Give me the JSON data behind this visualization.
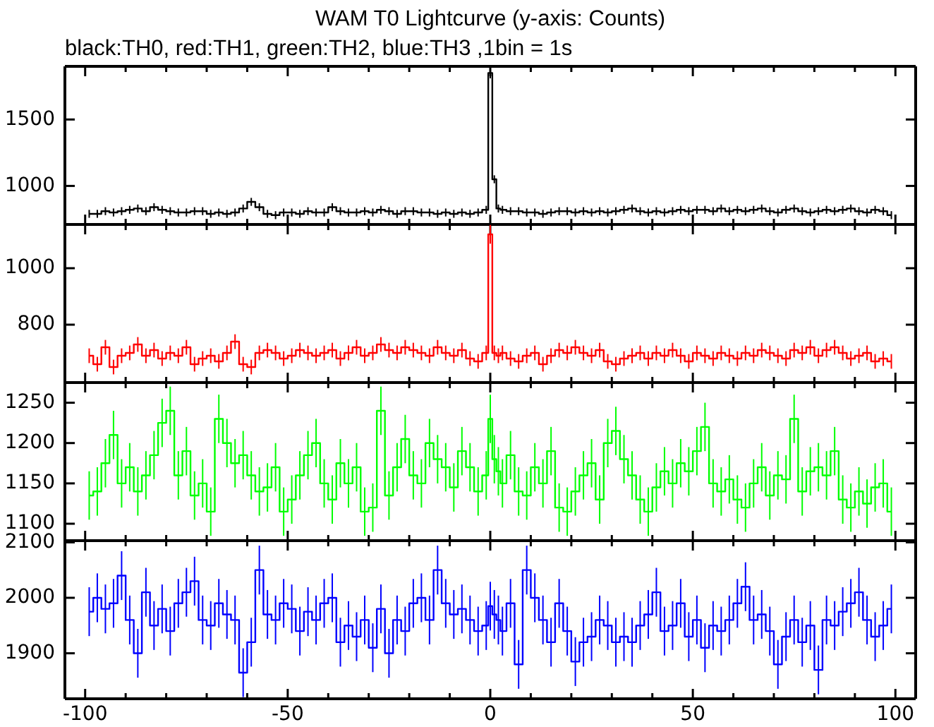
{
  "chart_data": [
    {
      "type": "step",
      "title": "WAM T0 Lightcurve (y-axis: Counts)",
      "subtitle": "black:TH0, red:TH1, green:TH2, blue:TH3 ,1bin = 1s",
      "color": "#000000",
      "x": [
        -99,
        -97,
        -95,
        -93,
        -91,
        -89,
        -87,
        -85,
        -83,
        -81,
        -79,
        -77,
        -75,
        -73,
        -71,
        -69,
        -67,
        -65,
        -63,
        -61,
        -59,
        -57,
        -55,
        -53,
        -51,
        -49,
        -47,
        -45,
        -43,
        -41,
        -39,
        -37,
        -35,
        -33,
        -31,
        -29,
        -27,
        -25,
        -23,
        -21,
        -19,
        -17,
        -15,
        -13,
        -11,
        -9,
        -7,
        -5,
        -3,
        -1,
        0,
        1,
        2,
        3,
        5,
        7,
        9,
        11,
        13,
        15,
        17,
        19,
        21,
        23,
        25,
        27,
        29,
        31,
        33,
        35,
        37,
        39,
        41,
        43,
        45,
        47,
        49,
        51,
        53,
        55,
        57,
        59,
        61,
        63,
        65,
        67,
        69,
        71,
        73,
        75,
        77,
        79,
        81,
        83,
        85,
        87,
        89,
        91,
        93,
        95,
        97,
        99
      ],
      "values": [
        790,
        790,
        810,
        800,
        810,
        820,
        830,
        810,
        840,
        820,
        810,
        800,
        800,
        810,
        810,
        790,
        800,
        790,
        800,
        830,
        880,
        840,
        790,
        780,
        800,
        800,
        790,
        810,
        800,
        800,
        840,
        810,
        800,
        800,
        810,
        800,
        820,
        810,
        790,
        810,
        810,
        800,
        800,
        790,
        800,
        790,
        800,
        790,
        800,
        820,
        1850,
        1050,
        830,
        820,
        810,
        810,
        800,
        800,
        790,
        800,
        810,
        810,
        800,
        810,
        800,
        810,
        800,
        810,
        820,
        830,
        810,
        800,
        810,
        800,
        810,
        820,
        810,
        820,
        820,
        810,
        830,
        810,
        820,
        810,
        820,
        830,
        810,
        800,
        820,
        830,
        810,
        800,
        810,
        820,
        810,
        820,
        830,
        810,
        800,
        820,
        810,
        780
      ],
      "errors": [
        30,
        30,
        30,
        30,
        30,
        30,
        30,
        30,
        30,
        30,
        30,
        30,
        30,
        30,
        30,
        30,
        30,
        30,
        30,
        30,
        30,
        30,
        30,
        30,
        30,
        30,
        30,
        30,
        30,
        30,
        30,
        30,
        30,
        30,
        30,
        30,
        30,
        30,
        30,
        30,
        30,
        30,
        30,
        30,
        30,
        30,
        30,
        30,
        30,
        30,
        40,
        30,
        30,
        30,
        30,
        30,
        30,
        30,
        30,
        30,
        30,
        30,
        30,
        30,
        30,
        30,
        30,
        30,
        30,
        30,
        30,
        30,
        30,
        30,
        30,
        30,
        30,
        30,
        30,
        30,
        30,
        30,
        30,
        30,
        30,
        30,
        30,
        30,
        30,
        30,
        30,
        30,
        30,
        30,
        30,
        30,
        30,
        30,
        30,
        30,
        30,
        30
      ],
      "xlim": [
        -105,
        105
      ],
      "xticks": [
        -100,
        {
          "value": -90,
          "label": null
        },
        {
          "value": -80,
          "label": null
        },
        {
          "value": -70,
          "label": null
        },
        {
          "value": -60,
          "label": null
        },
        -50,
        {
          "value": -40,
          "label": null
        },
        {
          "value": -30,
          "label": null
        },
        {
          "value": -20,
          "label": null
        },
        {
          "value": -10,
          "label": null
        },
        0,
        {
          "value": 10,
          "label": null
        },
        {
          "value": 20,
          "label": null
        },
        {
          "value": 30,
          "label": null
        },
        {
          "value": 40,
          "label": null
        },
        50,
        {
          "value": 60,
          "label": null
        },
        {
          "value": 70,
          "label": null
        },
        {
          "value": 80,
          "label": null
        },
        {
          "value": 90,
          "label": null
        },
        100
      ],
      "ylim": [
        710,
        1900
      ],
      "yticks": [
        1000,
        1500
      ],
      "tick_labels": "y"
    },
    {
      "type": "step",
      "color": "#ff0000",
      "x": [
        -99,
        -97,
        -95,
        -93,
        -91,
        -89,
        -87,
        -85,
        -83,
        -81,
        -79,
        -77,
        -75,
        -73,
        -71,
        -69,
        -67,
        -65,
        -63,
        -61,
        -59,
        -57,
        -55,
        -53,
        -51,
        -49,
        -47,
        -45,
        -43,
        -41,
        -39,
        -37,
        -35,
        -33,
        -31,
        -29,
        -27,
        -25,
        -23,
        -21,
        -19,
        -17,
        -15,
        -13,
        -11,
        -9,
        -7,
        -5,
        -3,
        -1,
        0,
        1,
        2,
        3,
        5,
        7,
        9,
        11,
        13,
        15,
        17,
        19,
        21,
        23,
        25,
        27,
        29,
        31,
        33,
        35,
        37,
        39,
        41,
        43,
        45,
        47,
        49,
        51,
        53,
        55,
        57,
        59,
        61,
        63,
        65,
        67,
        69,
        71,
        73,
        75,
        77,
        79,
        81,
        83,
        85,
        87,
        89,
        91,
        93,
        95,
        97,
        99
      ],
      "values": [
        690,
        660,
        720,
        650,
        690,
        700,
        730,
        690,
        710,
        680,
        700,
        690,
        720,
        660,
        680,
        690,
        670,
        700,
        740,
        660,
        650,
        700,
        710,
        700,
        680,
        690,
        710,
        700,
        690,
        700,
        710,
        680,
        700,
        720,
        690,
        700,
        730,
        710,
        700,
        720,
        710,
        700,
        690,
        720,
        700,
        690,
        710,
        680,
        670,
        700,
        1120,
        700,
        690,
        700,
        680,
        670,
        690,
        700,
        660,
        690,
        710,
        700,
        720,
        700,
        690,
        710,
        670,
        660,
        680,
        690,
        700,
        680,
        700,
        690,
        710,
        690,
        670,
        700,
        690,
        680,
        700,
        690,
        680,
        700,
        690,
        710,
        700,
        690,
        680,
        710,
        700,
        720,
        690,
        710,
        720,
        700,
        680,
        690,
        700,
        670,
        680,
        670
      ],
      "errors": [
        26,
        26,
        26,
        26,
        26,
        26,
        26,
        26,
        26,
        26,
        26,
        26,
        26,
        26,
        26,
        26,
        26,
        26,
        26,
        26,
        26,
        26,
        26,
        26,
        26,
        26,
        26,
        26,
        26,
        26,
        26,
        26,
        26,
        26,
        26,
        26,
        26,
        26,
        26,
        26,
        26,
        26,
        26,
        26,
        26,
        26,
        26,
        26,
        26,
        26,
        33,
        26,
        26,
        26,
        26,
        26,
        26,
        26,
        26,
        26,
        26,
        26,
        26,
        26,
        26,
        26,
        26,
        26,
        26,
        26,
        26,
        26,
        26,
        26,
        26,
        26,
        26,
        26,
        26,
        26,
        26,
        26,
        26,
        26,
        26,
        26,
        26,
        26,
        26,
        26,
        26,
        26,
        26,
        26,
        26,
        26,
        26,
        26,
        26,
        26,
        26,
        26
      ],
      "xlim": [
        -105,
        105
      ],
      "xticks": [
        -100,
        {
          "value": -90,
          "label": null
        },
        {
          "value": -80,
          "label": null
        },
        {
          "value": -70,
          "label": null
        },
        {
          "value": -60,
          "label": null
        },
        -50,
        {
          "value": -40,
          "label": null
        },
        {
          "value": -30,
          "label": null
        },
        {
          "value": -20,
          "label": null
        },
        {
          "value": -10,
          "label": null
        },
        0,
        {
          "value": 10,
          "label": null
        },
        {
          "value": 20,
          "label": null
        },
        {
          "value": 30,
          "label": null
        },
        {
          "value": 40,
          "label": null
        },
        50,
        {
          "value": 60,
          "label": null
        },
        {
          "value": 70,
          "label": null
        },
        {
          "value": 80,
          "label": null
        },
        {
          "value": 90,
          "label": null
        },
        100
      ],
      "ylim": [
        595,
        1155
      ],
      "yticks": [
        800,
        1000
      ],
      "tick_labels": "y"
    },
    {
      "type": "step",
      "color": "#00ff00",
      "x": [
        -99,
        -97,
        -95,
        -93,
        -91,
        -89,
        -87,
        -85,
        -83,
        -81,
        -79,
        -77,
        -75,
        -73,
        -71,
        -69,
        -67,
        -65,
        -63,
        -61,
        -59,
        -57,
        -55,
        -53,
        -51,
        -49,
        -47,
        -45,
        -43,
        -41,
        -39,
        -37,
        -35,
        -33,
        -31,
        -29,
        -27,
        -25,
        -23,
        -21,
        -19,
        -17,
        -15,
        -13,
        -11,
        -9,
        -7,
        -5,
        -3,
        -1,
        0,
        1,
        2,
        3,
        5,
        7,
        9,
        11,
        13,
        15,
        17,
        19,
        21,
        23,
        25,
        27,
        29,
        31,
        33,
        35,
        37,
        39,
        41,
        43,
        45,
        47,
        49,
        51,
        53,
        55,
        57,
        59,
        61,
        63,
        65,
        67,
        69,
        71,
        73,
        75,
        77,
        79,
        81,
        83,
        85,
        87,
        89,
        91,
        93,
        95,
        97,
        99
      ],
      "values": [
        1135,
        1140,
        1175,
        1210,
        1150,
        1170,
        1140,
        1160,
        1185,
        1225,
        1240,
        1160,
        1190,
        1135,
        1150,
        1115,
        1230,
        1200,
        1175,
        1185,
        1160,
        1140,
        1145,
        1170,
        1115,
        1130,
        1160,
        1185,
        1200,
        1150,
        1130,
        1175,
        1150,
        1170,
        1115,
        1120,
        1240,
        1135,
        1170,
        1205,
        1160,
        1150,
        1200,
        1180,
        1170,
        1145,
        1190,
        1170,
        1140,
        1160,
        1230,
        1180,
        1165,
        1150,
        1185,
        1140,
        1135,
        1170,
        1150,
        1190,
        1120,
        1115,
        1140,
        1160,
        1175,
        1130,
        1200,
        1215,
        1180,
        1160,
        1130,
        1115,
        1145,
        1165,
        1150,
        1175,
        1165,
        1190,
        1220,
        1150,
        1140,
        1155,
        1130,
        1120,
        1150,
        1170,
        1135,
        1160,
        1155,
        1230,
        1140,
        1165,
        1170,
        1160,
        1190,
        1130,
        1120,
        1140,
        1125,
        1145,
        1150,
        1115
      ],
      "errors": [
        30,
        30,
        30,
        30,
        30,
        30,
        30,
        30,
        30,
        30,
        30,
        30,
        30,
        30,
        30,
        30,
        30,
        30,
        30,
        30,
        30,
        30,
        30,
        30,
        30,
        30,
        30,
        30,
        30,
        30,
        30,
        30,
        30,
        30,
        30,
        30,
        30,
        30,
        30,
        30,
        30,
        30,
        30,
        30,
        30,
        30,
        30,
        30,
        30,
        30,
        30,
        30,
        30,
        30,
        30,
        30,
        30,
        30,
        30,
        30,
        30,
        30,
        30,
        30,
        30,
        30,
        30,
        30,
        30,
        30,
        30,
        30,
        30,
        30,
        30,
        30,
        30,
        30,
        30,
        30,
        30,
        30,
        30,
        30,
        30,
        30,
        30,
        30,
        30,
        30,
        30,
        30,
        30,
        30,
        30,
        30,
        30,
        30,
        30,
        30,
        30,
        30
      ],
      "xlim": [
        -105,
        105
      ],
      "xticks": [
        -100,
        {
          "value": -90,
          "label": null
        },
        {
          "value": -80,
          "label": null
        },
        {
          "value": -70,
          "label": null
        },
        {
          "value": -60,
          "label": null
        },
        -50,
        {
          "value": -40,
          "label": null
        },
        {
          "value": -30,
          "label": null
        },
        {
          "value": -20,
          "label": null
        },
        {
          "value": -10,
          "label": null
        },
        0,
        {
          "value": 10,
          "label": null
        },
        {
          "value": 20,
          "label": null
        },
        {
          "value": 30,
          "label": null
        },
        {
          "value": 40,
          "label": null
        },
        50,
        {
          "value": 60,
          "label": null
        },
        {
          "value": 70,
          "label": null
        },
        {
          "value": 80,
          "label": null
        },
        {
          "value": 90,
          "label": null
        },
        100
      ],
      "ylim": [
        1079,
        1275
      ],
      "yticks": [
        1100,
        1150,
        1200,
        1250
      ],
      "tick_labels": "y"
    },
    {
      "type": "step",
      "color": "#0000ff",
      "x": [
        -99,
        -97,
        -95,
        -93,
        -91,
        -89,
        -87,
        -85,
        -83,
        -81,
        -79,
        -77,
        -75,
        -73,
        -71,
        -69,
        -67,
        -65,
        -63,
        -61,
        -59,
        -57,
        -55,
        -53,
        -51,
        -49,
        -47,
        -45,
        -43,
        -41,
        -39,
        -37,
        -35,
        -33,
        -31,
        -29,
        -27,
        -25,
        -23,
        -21,
        -19,
        -17,
        -15,
        -13,
        -11,
        -9,
        -7,
        -5,
        -3,
        -1,
        0,
        1,
        2,
        3,
        5,
        7,
        9,
        11,
        13,
        15,
        17,
        19,
        21,
        23,
        25,
        27,
        29,
        31,
        33,
        35,
        37,
        39,
        41,
        43,
        45,
        47,
        49,
        51,
        53,
        55,
        57,
        59,
        61,
        63,
        65,
        67,
        69,
        71,
        73,
        75,
        77,
        79,
        81,
        83,
        85,
        87,
        89,
        91,
        93,
        95,
        97,
        99
      ],
      "values": [
        1975,
        2000,
        1980,
        1990,
        2040,
        1960,
        1900,
        2010,
        1950,
        1980,
        1940,
        1990,
        2010,
        2030,
        1960,
        1950,
        1990,
        1970,
        1960,
        1865,
        1920,
        2050,
        1970,
        1960,
        1990,
        1980,
        1940,
        1975,
        1960,
        1990,
        2000,
        1920,
        1950,
        1930,
        1960,
        1910,
        1980,
        1900,
        1960,
        1940,
        1990,
        2000,
        1960,
        2050,
        1990,
        1970,
        1980,
        1960,
        1940,
        1950,
        1985,
        1970,
        1960,
        1940,
        1990,
        1880,
        2050,
        2000,
        1960,
        1920,
        1990,
        1940,
        1885,
        1920,
        1930,
        1960,
        1950,
        1920,
        1930,
        1920,
        1950,
        1970,
        2010,
        1940,
        1950,
        1990,
        1930,
        1960,
        1910,
        1950,
        1940,
        1960,
        1990,
        2020,
        1960,
        1970,
        1940,
        1880,
        1930,
        1960,
        1920,
        1950,
        1870,
        1960,
        1950,
        1975,
        1990,
        2010,
        1960,
        1930,
        1950,
        1980
      ],
      "errors": [
        44,
        44,
        44,
        44,
        44,
        44,
        44,
        44,
        44,
        44,
        44,
        44,
        44,
        44,
        44,
        44,
        44,
        44,
        44,
        44,
        44,
        44,
        44,
        44,
        44,
        44,
        44,
        44,
        44,
        44,
        44,
        44,
        44,
        44,
        44,
        44,
        44,
        44,
        44,
        44,
        44,
        44,
        44,
        44,
        44,
        44,
        44,
        44,
        44,
        44,
        44,
        44,
        44,
        44,
        44,
        44,
        44,
        44,
        44,
        44,
        44,
        44,
        44,
        44,
        44,
        44,
        44,
        44,
        44,
        44,
        44,
        44,
        44,
        44,
        44,
        44,
        44,
        44,
        44,
        44,
        44,
        44,
        44,
        44,
        44,
        44,
        44,
        44,
        44,
        44,
        44,
        44,
        44,
        44,
        44,
        44,
        44,
        44,
        44,
        44,
        44,
        44
      ],
      "xlim": [
        -105,
        105
      ],
      "xticks": [
        -100,
        {
          "value": -90,
          "label": null
        },
        {
          "value": -80,
          "label": null
        },
        {
          "value": -70,
          "label": null
        },
        {
          "value": -60,
          "label": null
        },
        -50,
        {
          "value": -40,
          "label": null
        },
        {
          "value": -30,
          "label": null
        },
        {
          "value": -20,
          "label": null
        },
        {
          "value": -10,
          "label": null
        },
        0,
        {
          "value": 10,
          "label": null
        },
        {
          "value": 20,
          "label": null
        },
        {
          "value": 30,
          "label": null
        },
        {
          "value": 40,
          "label": null
        },
        50,
        {
          "value": 60,
          "label": null
        },
        {
          "value": 70,
          "label": null
        },
        {
          "value": 80,
          "label": null
        },
        {
          "value": 90,
          "label": null
        },
        100
      ],
      "ylim": [
        1818,
        2103
      ],
      "yticks": [
        1900,
        2000,
        2100
      ]
    }
  ]
}
